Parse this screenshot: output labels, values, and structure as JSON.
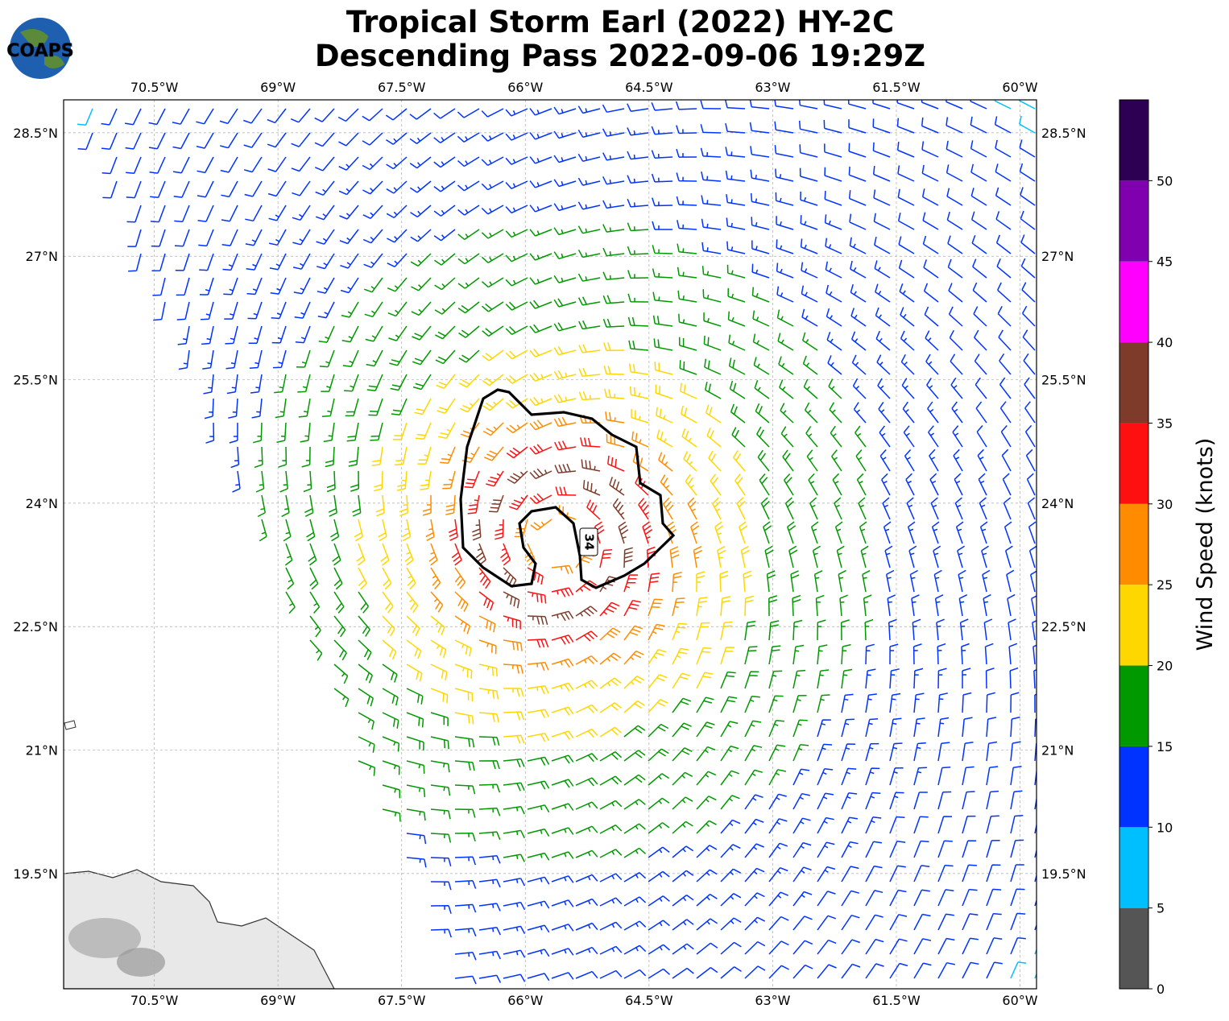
{
  "header": {
    "title_line1": "Tropical Storm Earl (2022) HY-2C",
    "title_line2": "Descending Pass 2022-09-06 19:29Z",
    "logo": "COAPS"
  },
  "map": {
    "xlim": [
      -71.6,
      -59.8
    ],
    "ylim": [
      18.1,
      28.9
    ],
    "xticks": [
      {
        "value": -70.5,
        "label": "70.5°W"
      },
      {
        "value": -69,
        "label": "69°W"
      },
      {
        "value": -67.5,
        "label": "67.5°W"
      },
      {
        "value": -66,
        "label": "66°W"
      },
      {
        "value": -64.5,
        "label": "64.5°W"
      },
      {
        "value": -63,
        "label": "63°W"
      },
      {
        "value": -61.5,
        "label": "61.5°W"
      },
      {
        "value": -60,
        "label": "60°W"
      }
    ],
    "yticks": [
      {
        "value": 28.5,
        "label": "28.5°N"
      },
      {
        "value": 27,
        "label": "27°N"
      },
      {
        "value": 25.5,
        "label": "25.5°N"
      },
      {
        "value": 24,
        "label": "24°N"
      },
      {
        "value": 22.5,
        "label": "22.5°N"
      },
      {
        "value": 21,
        "label": "21°N"
      },
      {
        "value": 19.5,
        "label": "19.5°N"
      }
    ],
    "grid": true,
    "contour_label": "34"
  },
  "colorbar": {
    "label": "Wind Speed (knots)",
    "bounds": [
      0,
      5,
      10,
      15,
      20,
      25,
      30,
      35,
      40,
      45,
      50,
      55
    ],
    "colors": [
      "#555555",
      "#00bfff",
      "#0033ff",
      "#009900",
      "#ffd700",
      "#ff8c00",
      "#ff1010",
      "#7f3b2a",
      "#ff00ff",
      "#8000b0",
      "#2e0054"
    ],
    "ticks": [
      0,
      5,
      10,
      15,
      20,
      25,
      30,
      35,
      40,
      45,
      50
    ]
  }
}
